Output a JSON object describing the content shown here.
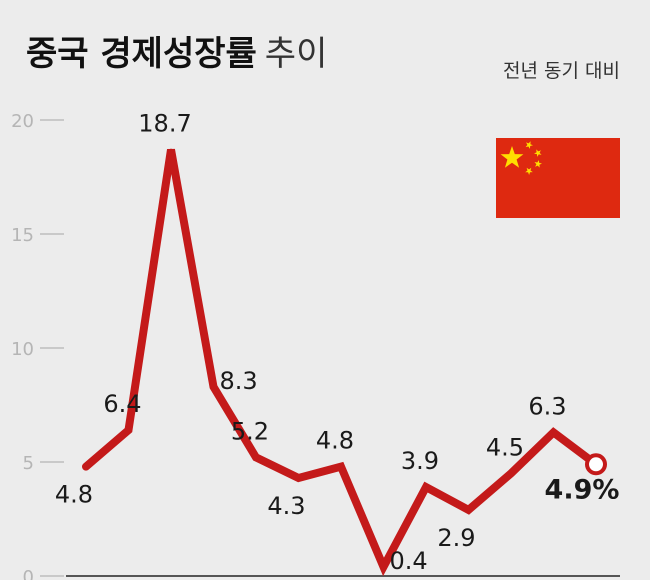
{
  "title": {
    "main": "중국 경제성장률",
    "sub": "추이",
    "unit_note": "전년 동기 대비"
  },
  "colors": {
    "line": "#c41a1a",
    "tick": "#bdbdbd",
    "grid": "#d3d3d3",
    "label": "#1a1a1a",
    "flag_red": "#de2910",
    "flag_star": "#ffde00",
    "background": "#ececec"
  },
  "flag": {
    "icon": "china-flag"
  },
  "chart_data": {
    "type": "line",
    "title": "중국 경제성장률 추이",
    "ylabel": "",
    "xlabel": "",
    "ylim": [
      0,
      20
    ],
    "yticks": [
      0,
      5,
      10,
      15,
      20
    ],
    "grid": false,
    "series": [
      {
        "values": [
          4.8,
          6.4,
          18.7,
          8.3,
          5.2,
          4.3,
          4.8,
          0.4,
          3.9,
          2.9,
          4.5,
          6.3,
          4.9
        ],
        "labels": [
          "4.8",
          "6.4",
          "18.7",
          "8.3",
          "5.2",
          "4.3",
          "4.8",
          "0.4",
          "3.9",
          "2.9",
          "4.5",
          "6.3",
          "4.9%"
        ],
        "label_positions": [
          "below",
          "above",
          "above",
          "right",
          "above",
          "below",
          "above",
          "right",
          "above",
          "below",
          "above",
          "above",
          "below"
        ]
      }
    ],
    "highlight": {
      "index": 12,
      "label": "4.9%"
    }
  }
}
